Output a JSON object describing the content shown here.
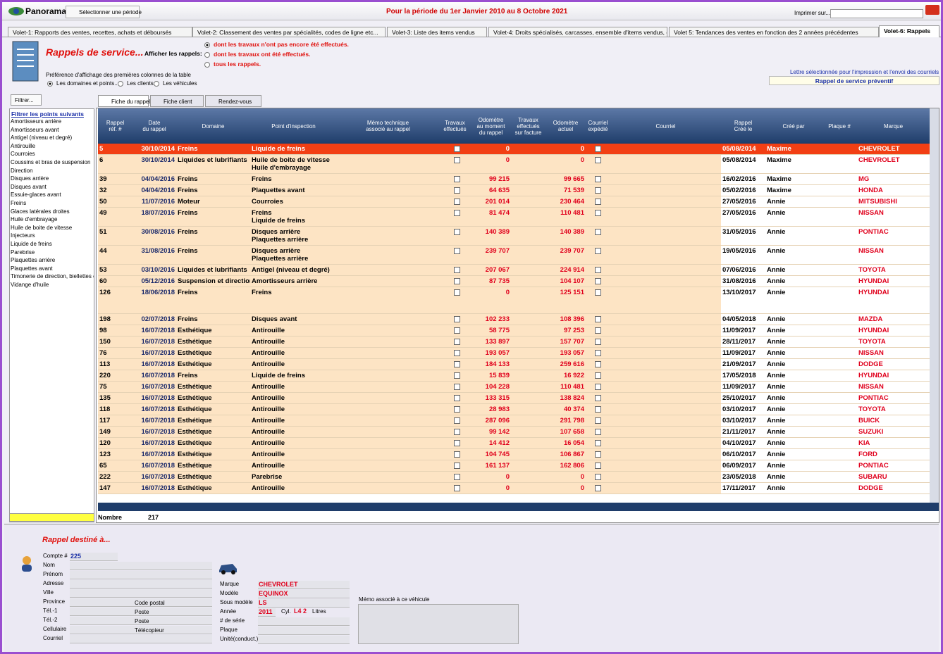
{
  "header": {
    "app": "Panorama",
    "period_button": "Sélectionner une période",
    "period": "Pour la période du 1er Janvier 2010 au 8 Octobre 2021",
    "print": "Imprimer sur..."
  },
  "tabs": [
    "Volet-1: Rapports des ventes, recettes, achats et déboursés",
    "Volet-2: Classement des ventes par spécialités, codes de ligne etc...",
    "Volet-3: Liste des items vendus",
    "Volet-4: Droits spécialisés, carcasses,  ensemble d'items vendus, etc...",
    "Volet 5: Tendances des ventes en fonction des 2 années précédentes",
    "Volet-6: Rappels"
  ],
  "section": {
    "title": "Rappels de service...",
    "show_label": "Afficher les rappels:",
    "show_options": [
      "dont les travaux n'ont pas encore été effectués.",
      "dont les travaux ont été effectués.",
      "tous les rappels."
    ],
    "pref_label": "Préférence d'affichage des premières colonnes de la table",
    "pref_options": [
      "Les domaines et points...",
      "Les clients",
      "Les véhicules"
    ],
    "letter_label": "Lettre sélectionnée pour l'impression et l'envoi des courriels",
    "letter": "Rappel de service préventif"
  },
  "filter": {
    "button": "Filtrer...",
    "title": "Filtrer les points suivants",
    "items": [
      "Amortisseurs arrière",
      "Amortisseurs avant",
      "Antigel (niveau et degré)",
      "Antirouille",
      "Courroies",
      "Coussins et bras de suspension",
      "Direction",
      "Disques arrière",
      "Disques avant",
      "Essuie-glaces avant",
      "Freins",
      "Glaces latérales droites",
      "Huile d'embrayage",
      "Huile de boite de vitesse",
      "Injecteurs",
      "Liquide de freins",
      "Parebrise",
      "Plaquettes arrière",
      "Plaquettes avant",
      "Timonerie de direction, biellettes etc",
      "Vidange d'huile"
    ]
  },
  "subtabs": [
    "Fiche du rappel",
    "Fiche client",
    "Rendez-vous"
  ],
  "table": {
    "headers": [
      [
        "Rappel",
        "réf. #"
      ],
      [
        "Date",
        "du rappel"
      ],
      [
        "Domaine"
      ],
      [
        "Point d'inspection"
      ],
      [
        "Mémo technique",
        "associé au rappel"
      ],
      [
        "Travaux",
        "effectués"
      ],
      [
        "Odomètre",
        "au moment",
        "du rappel"
      ],
      [
        "Travaux",
        "effectués",
        "sur facture"
      ],
      [
        "Odomètre",
        "actuel"
      ],
      [
        "Courriel",
        "expédié"
      ],
      [
        "Courriel"
      ],
      [
        "Rappel",
        "Créé le"
      ],
      [
        "Créé par"
      ],
      [
        "Plaque #"
      ],
      [
        "Marque"
      ]
    ],
    "rows": [
      {
        "ref": "5",
        "date": "30/10/2014",
        "domaine": "Freins",
        "point": [
          "Liquide de freins"
        ],
        "odo_rappel": "0",
        "odo_actuel": "0",
        "cree_le": "05/08/2014",
        "cree_par": "Maxime",
        "marque": "CHEVROLET"
      },
      {
        "ref": "6",
        "date": "30/10/2014",
        "domaine": "Liquides et lubrifiants",
        "point": [
          "Huile de boite de vitesse",
          "Huile d'embrayage"
        ],
        "odo_rappel": "0",
        "odo_actuel": "0",
        "cree_le": "05/08/2014",
        "cree_par": "Maxime",
        "marque": "CHEVROLET"
      },
      {
        "ref": "39",
        "date": "04/04/2016",
        "domaine": "Freins",
        "point": [
          "Freins"
        ],
        "odo_rappel": "99 215",
        "odo_actuel": "99 665",
        "cree_le": "16/02/2016",
        "cree_par": "Maxime",
        "marque": "MG"
      },
      {
        "ref": "32",
        "date": "04/04/2016",
        "domaine": "Freins",
        "point": [
          "Plaquettes avant"
        ],
        "odo_rappel": "64 635",
        "odo_actuel": "71 539",
        "cree_le": "05/02/2016",
        "cree_par": "Maxime",
        "marque": "HONDA"
      },
      {
        "ref": "50",
        "date": "11/07/2016",
        "domaine": "Moteur",
        "point": [
          "Courroies"
        ],
        "odo_rappel": "201 014",
        "odo_actuel": "230 464",
        "cree_le": "27/05/2016",
        "cree_par": "Annie",
        "marque": "MITSUBISHI"
      },
      {
        "ref": "49",
        "date": "18/07/2016",
        "domaine": "Freins",
        "point": [
          "Freins",
          "Liquide de freins"
        ],
        "odo_rappel": "81 474",
        "odo_actuel": "110 481",
        "cree_le": "27/05/2016",
        "cree_par": "Annie",
        "marque": "NISSAN"
      },
      {
        "ref": "51",
        "date": "30/08/2016",
        "domaine": "Freins",
        "point": [
          "Disques arrière",
          "Plaquettes arrière"
        ],
        "odo_rappel": "140 389",
        "odo_actuel": "140 389",
        "cree_le": "31/05/2016",
        "cree_par": "Annie",
        "marque": "PONTIAC"
      },
      {
        "ref": "44",
        "date": "31/08/2016",
        "domaine": "Freins",
        "point": [
          "Disques arrière",
          "Plaquettes arrière"
        ],
        "odo_rappel": "239 707",
        "odo_actuel": "239 707",
        "cree_le": "19/05/2016",
        "cree_par": "Annie",
        "marque": "NISSAN"
      },
      {
        "ref": "53",
        "date": "03/10/2016",
        "domaine": "Liquides et lubrifiants",
        "point": [
          "Antigel (niveau et degré)"
        ],
        "odo_rappel": "207 067",
        "odo_actuel": "224 914",
        "cree_le": "07/06/2016",
        "cree_par": "Annie",
        "marque": "TOYOTA"
      },
      {
        "ref": "60",
        "date": "05/12/2016",
        "domaine": "Suspension et direction",
        "point": [
          "Amortisseurs arrière"
        ],
        "odo_rappel": "87 735",
        "odo_actuel": "104 107",
        "cree_le": "31/08/2016",
        "cree_par": "Annie",
        "marque": "HYUNDAI"
      },
      {
        "ref": "126",
        "date": "18/06/2018",
        "domaine": "Freins",
        "point": [
          "Freins"
        ],
        "odo_rappel": "0",
        "odo_actuel": "125 151",
        "cree_le": "13/10/2017",
        "cree_par": "Annie",
        "marque": "HYUNDAI"
      },
      {
        "ref": "198",
        "date": "02/07/2018",
        "domaine": "Freins",
        "point": [
          "Disques avant"
        ],
        "odo_rappel": "102 233",
        "odo_actuel": "108 396",
        "cree_le": "04/05/2018",
        "cree_par": "Annie",
        "marque": "MAZDA"
      },
      {
        "ref": "98",
        "date": "16/07/2018",
        "domaine": "Esthétique",
        "point": [
          "Antirouille"
        ],
        "odo_rappel": "58 775",
        "odo_actuel": "97 253",
        "cree_le": "11/09/2017",
        "cree_par": "Annie",
        "marque": "HYUNDAI"
      },
      {
        "ref": "150",
        "date": "16/07/2018",
        "domaine": "Esthétique",
        "point": [
          "Antirouille"
        ],
        "odo_rappel": "133 897",
        "odo_actuel": "157 707",
        "cree_le": "28/11/2017",
        "cree_par": "Annie",
        "marque": "TOYOTA"
      },
      {
        "ref": "76",
        "date": "16/07/2018",
        "domaine": "Esthétique",
        "point": [
          "Antirouille"
        ],
        "odo_rappel": "193 057",
        "odo_actuel": "193 057",
        "cree_le": "11/09/2017",
        "cree_par": "Annie",
        "marque": "NISSAN"
      },
      {
        "ref": "113",
        "date": "16/07/2018",
        "domaine": "Esthétique",
        "point": [
          "Antirouille"
        ],
        "odo_rappel": "184 133",
        "odo_actuel": "259 616",
        "cree_le": "21/09/2017",
        "cree_par": "Annie",
        "marque": "DODGE"
      },
      {
        "ref": "220",
        "date": "16/07/2018",
        "domaine": "Freins",
        "point": [
          "Liquide de freins"
        ],
        "odo_rappel": "15 839",
        "odo_actuel": "16 922",
        "cree_le": "17/05/2018",
        "cree_par": "Annie",
        "marque": "HYUNDAI"
      },
      {
        "ref": "75",
        "date": "16/07/2018",
        "domaine": "Esthétique",
        "point": [
          "Antirouille"
        ],
        "odo_rappel": "104 228",
        "odo_actuel": "110 481",
        "cree_le": "11/09/2017",
        "cree_par": "Annie",
        "marque": "NISSAN"
      },
      {
        "ref": "135",
        "date": "16/07/2018",
        "domaine": "Esthétique",
        "point": [
          "Antirouille"
        ],
        "odo_rappel": "133 315",
        "odo_actuel": "138 824",
        "cree_le": "25/10/2017",
        "cree_par": "Annie",
        "marque": "PONTIAC"
      },
      {
        "ref": "118",
        "date": "16/07/2018",
        "domaine": "Esthétique",
        "point": [
          "Antirouille"
        ],
        "odo_rappel": "28 983",
        "odo_actuel": "40 374",
        "cree_le": "03/10/2017",
        "cree_par": "Annie",
        "marque": "TOYOTA"
      },
      {
        "ref": "117",
        "date": "16/07/2018",
        "domaine": "Esthétique",
        "point": [
          "Antirouille"
        ],
        "odo_rappel": "287 096",
        "odo_actuel": "291 798",
        "cree_le": "03/10/2017",
        "cree_par": "Annie",
        "marque": "BUICK"
      },
      {
        "ref": "149",
        "date": "16/07/2018",
        "domaine": "Esthétique",
        "point": [
          "Antirouille"
        ],
        "odo_rappel": "99 142",
        "odo_actuel": "107 658",
        "cree_le": "21/11/2017",
        "cree_par": "Annie",
        "marque": "SUZUKI"
      },
      {
        "ref": "120",
        "date": "16/07/2018",
        "domaine": "Esthétique",
        "point": [
          "Antirouille"
        ],
        "odo_rappel": "14 412",
        "odo_actuel": "16 054",
        "cree_le": "04/10/2017",
        "cree_par": "Annie",
        "marque": "KIA"
      },
      {
        "ref": "123",
        "date": "16/07/2018",
        "domaine": "Esthétique",
        "point": [
          "Antirouille"
        ],
        "odo_rappel": "104 745",
        "odo_actuel": "106 867",
        "cree_le": "06/10/2017",
        "cree_par": "Annie",
        "marque": "FORD"
      },
      {
        "ref": "65",
        "date": "16/07/2018",
        "domaine": "Esthétique",
        "point": [
          "Antirouille"
        ],
        "odo_rappel": "161 137",
        "odo_actuel": "162 806",
        "cree_le": "06/09/2017",
        "cree_par": "Annie",
        "marque": "PONTIAC"
      },
      {
        "ref": "222",
        "date": "16/07/2018",
        "domaine": "Esthétique",
        "point": [
          "Parebrise"
        ],
        "odo_rappel": "0",
        "odo_actuel": "0",
        "cree_le": "23/05/2018",
        "cree_par": "Annie",
        "marque": "SUBARU"
      },
      {
        "ref": "147",
        "date": "16/07/2018",
        "domaine": "Esthétique",
        "point": [
          "Antirouille"
        ],
        "odo_rappel": "0",
        "odo_actuel": "0",
        "cree_le": "17/11/2017",
        "cree_par": "Annie",
        "marque": "DODGE"
      }
    ],
    "count_label": "Nombre",
    "count": "217"
  },
  "recipient": {
    "title": "Rappel destiné à...",
    "client": [
      {
        "label": "Compte #",
        "value": "225"
      },
      {
        "label": "Nom"
      },
      {
        "label": "Prénom"
      },
      {
        "label": "Adresse"
      },
      {
        "label": "Ville"
      },
      {
        "label": "Province"
      },
      {
        "label": "Tél.-1"
      },
      {
        "label": "Tél.-2"
      },
      {
        "label": "Cellulaire"
      },
      {
        "label": "Courriel"
      }
    ],
    "client_right": [
      "Code postal",
      "Poste",
      "Poste",
      "Télécopieur"
    ],
    "vehicle": [
      {
        "label": "Marque",
        "value": "CHEVROLET"
      },
      {
        "label": "Modèle",
        "value": "EQUINOX"
      },
      {
        "label": "Sous modèle",
        "value": "LS"
      },
      {
        "label": "Année",
        "value": "2011"
      },
      {
        "label": "# de série"
      },
      {
        "label": "Plaque"
      },
      {
        "label": "Unité(conduct.)"
      }
    ],
    "cyl_label": "Cyl.",
    "cyl": "L4 2",
    "litres": "Litres",
    "memo_label": "Mémo associé à ce véhicule"
  }
}
